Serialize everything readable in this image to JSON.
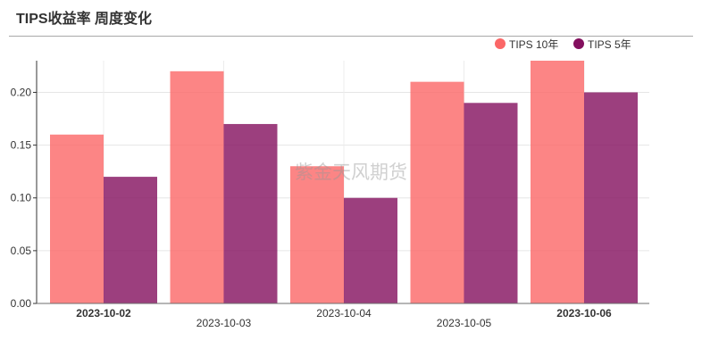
{
  "watermark": "紫金天风期货",
  "chart_data": {
    "type": "bar",
    "title": "TIPS收益率 周度变化",
    "categories": [
      "2023-10-02",
      "2023-10-03",
      "2023-10-04",
      "2023-10-05",
      "2023-10-06"
    ],
    "series": [
      {
        "name": "TIPS 10年",
        "color": "#fb6767",
        "values": [
          0.16,
          0.22,
          0.13,
          0.21,
          0.23
        ]
      },
      {
        "name": "TIPS 5年",
        "color": "#830f5e",
        "values": [
          0.12,
          0.17,
          0.1,
          0.19,
          0.2
        ]
      }
    ],
    "ylim": [
      0,
      0.23
    ],
    "yticks": [
      "0.00",
      "0.05",
      "0.10",
      "0.15",
      "0.20"
    ],
    "grid": true,
    "legend_position": "top-right"
  }
}
